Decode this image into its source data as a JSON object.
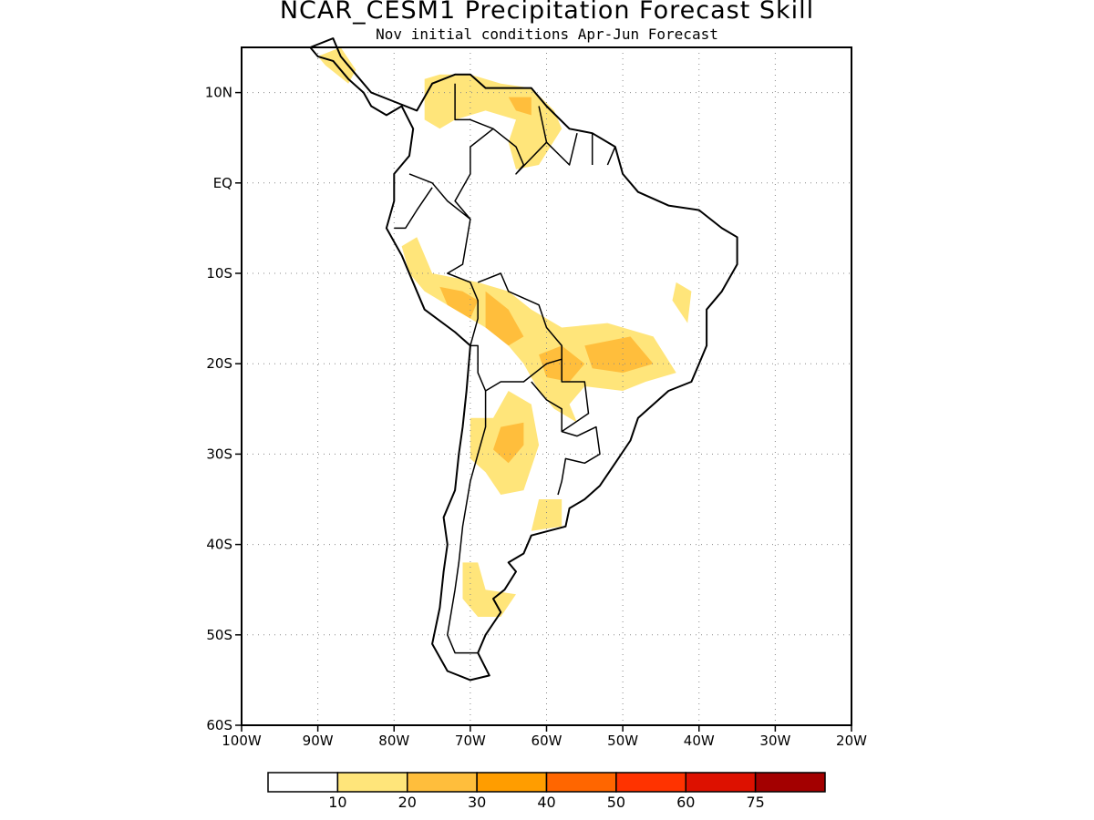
{
  "title": "NCAR_CESM1 Precipitation Forecast Skill",
  "subtitle": "Nov initial conditions  Apr-Jun Forecast",
  "map": {
    "region": "South America",
    "lon_range": [
      -100,
      -20
    ],
    "lat_range": [
      -60,
      15
    ],
    "grid": "dotted",
    "lat_ticks": [
      {
        "value": 10,
        "label": "10N"
      },
      {
        "value": 0,
        "label": "EQ"
      },
      {
        "value": -10,
        "label": "10S"
      },
      {
        "value": -20,
        "label": "20S"
      },
      {
        "value": -30,
        "label": "30S"
      },
      {
        "value": -40,
        "label": "40S"
      },
      {
        "value": -50,
        "label": "50S"
      },
      {
        "value": -60,
        "label": "60S"
      }
    ],
    "lon_ticks": [
      {
        "value": -100,
        "label": "100W"
      },
      {
        "value": -90,
        "label": "90W"
      },
      {
        "value": -80,
        "label": "80W"
      },
      {
        "value": -70,
        "label": "70W"
      },
      {
        "value": -60,
        "label": "60W"
      },
      {
        "value": -50,
        "label": "50W"
      },
      {
        "value": -40,
        "label": "40W"
      },
      {
        "value": -30,
        "label": "30W"
      },
      {
        "value": -20,
        "label": "20W"
      }
    ],
    "skill_regions": [
      {
        "level": 1,
        "name": "central-america",
        "points": [
          [
            -90,
            14
          ],
          [
            -87,
            15
          ],
          [
            -85,
            12.5
          ],
          [
            -86,
            11
          ],
          [
            -89,
            13
          ]
        ]
      },
      {
        "level": 1,
        "name": "colombia-venezuela",
        "points": [
          [
            -76,
            11.5
          ],
          [
            -74,
            12
          ],
          [
            -70,
            12
          ],
          [
            -66,
            11
          ],
          [
            -62,
            10.5
          ],
          [
            -59,
            8
          ],
          [
            -58,
            6
          ],
          [
            -61,
            2
          ],
          [
            -64,
            1.5
          ],
          [
            -65,
            4.5
          ],
          [
            -64,
            7
          ],
          [
            -68,
            8
          ],
          [
            -72,
            7
          ],
          [
            -74,
            6
          ],
          [
            -76,
            7
          ]
        ]
      },
      {
        "level": 2,
        "name": "venezuela-core",
        "points": [
          [
            -65,
            9.5
          ],
          [
            -62,
            9.5
          ],
          [
            -62,
            7.5
          ],
          [
            -64,
            8
          ]
        ]
      },
      {
        "level": 1,
        "name": "peru-bolivia-brazil",
        "points": [
          [
            -79,
            -7
          ],
          [
            -77,
            -6
          ],
          [
            -75,
            -10
          ],
          [
            -69,
            -11
          ],
          [
            -65,
            -12
          ],
          [
            -62,
            -14
          ],
          [
            -58,
            -16
          ],
          [
            -52,
            -15.5
          ],
          [
            -46,
            -17
          ],
          [
            -43,
            -21
          ],
          [
            -47,
            -22
          ],
          [
            -50,
            -23
          ],
          [
            -55,
            -22.5
          ],
          [
            -57,
            -24.5
          ],
          [
            -56,
            -26.5
          ],
          [
            -59,
            -25
          ],
          [
            -61,
            -23
          ],
          [
            -63,
            -20
          ],
          [
            -66,
            -17
          ],
          [
            -68,
            -16
          ],
          [
            -72,
            -14
          ],
          [
            -76,
            -12
          ],
          [
            -78,
            -10
          ]
        ]
      },
      {
        "level": 2,
        "name": "peru-core",
        "points": [
          [
            -74,
            -11.5
          ],
          [
            -71,
            -12
          ],
          [
            -69,
            -13
          ],
          [
            -70,
            -15
          ],
          [
            -73,
            -13.5
          ]
        ]
      },
      {
        "level": 2,
        "name": "bolivia-core",
        "points": [
          [
            -68,
            -12
          ],
          [
            -65,
            -14
          ],
          [
            -63,
            -17
          ],
          [
            -65,
            -18
          ],
          [
            -68,
            -16
          ]
        ]
      },
      {
        "level": 2,
        "name": "paraguay-core",
        "points": [
          [
            -61,
            -19
          ],
          [
            -58,
            -18
          ],
          [
            -55,
            -20
          ],
          [
            -57,
            -22
          ],
          [
            -60,
            -21.5
          ]
        ]
      },
      {
        "level": 2,
        "name": "brazil-core",
        "points": [
          [
            -55,
            -18
          ],
          [
            -49,
            -17
          ],
          [
            -46,
            -20
          ],
          [
            -50,
            -21
          ],
          [
            -54,
            -20.5
          ]
        ]
      },
      {
        "level": 1,
        "name": "eastern-brazil",
        "points": [
          [
            -43,
            -11
          ],
          [
            -41,
            -12
          ],
          [
            -41.5,
            -15.5
          ],
          [
            -43.5,
            -13
          ]
        ]
      },
      {
        "level": 1,
        "name": "argentina-north",
        "points": [
          [
            -67,
            -26
          ],
          [
            -65,
            -23
          ],
          [
            -62,
            -24.5
          ],
          [
            -61,
            -29
          ],
          [
            -63,
            -34
          ],
          [
            -66,
            -34.5
          ],
          [
            -68,
            -32
          ],
          [
            -70,
            -30.5
          ],
          [
            -70,
            -26
          ]
        ]
      },
      {
        "level": 2,
        "name": "argentina-core",
        "points": [
          [
            -66,
            -27
          ],
          [
            -63,
            -26.5
          ],
          [
            -63,
            -29
          ],
          [
            -65,
            -31
          ],
          [
            -67,
            -29.5
          ]
        ]
      },
      {
        "level": 1,
        "name": "buenos-aires",
        "points": [
          [
            -61,
            -35
          ],
          [
            -58,
            -35
          ],
          [
            -58,
            -38
          ],
          [
            -62,
            -38.5
          ]
        ]
      },
      {
        "level": 1,
        "name": "patagonia",
        "points": [
          [
            -71,
            -42
          ],
          [
            -69,
            -42
          ],
          [
            -68,
            -45
          ],
          [
            -64,
            -45.5
          ],
          [
            -66,
            -48
          ],
          [
            -69,
            -48
          ],
          [
            -71,
            -46
          ]
        ]
      }
    ],
    "land_outline": [
      [
        -91,
        15
      ],
      [
        -88,
        16
      ],
      [
        -87,
        14
      ],
      [
        -85,
        12
      ],
      [
        -83,
        10
      ],
      [
        -80,
        9
      ],
      [
        -77,
        8
      ],
      [
        -75,
        11
      ],
      [
        -72,
        12
      ],
      [
        -70,
        12
      ],
      [
        -68,
        10.5
      ],
      [
        -64,
        10.5
      ],
      [
        -62,
        10.5
      ],
      [
        -60,
        8.5
      ],
      [
        -57,
        6
      ],
      [
        -54,
        5.5
      ],
      [
        -51,
        4
      ],
      [
        -50,
        1
      ],
      [
        -48,
        -1
      ],
      [
        -44,
        -2.5
      ],
      [
        -40,
        -3
      ],
      [
        -37,
        -5
      ],
      [
        -35,
        -6
      ],
      [
        -35,
        -9
      ],
      [
        -37,
        -12
      ],
      [
        -39,
        -14
      ],
      [
        -39,
        -18
      ],
      [
        -40,
        -20
      ],
      [
        -41,
        -22
      ],
      [
        -44,
        -23
      ],
      [
        -48,
        -26
      ],
      [
        -49,
        -28.5
      ],
      [
        -51,
        -31
      ],
      [
        -53,
        -33.5
      ],
      [
        -55,
        -35
      ],
      [
        -57,
        -36
      ],
      [
        -57.5,
        -38
      ],
      [
        -62,
        -39
      ],
      [
        -63,
        -41
      ],
      [
        -65,
        -42
      ],
      [
        -64,
        -43
      ],
      [
        -65.5,
        -45
      ],
      [
        -67,
        -46
      ],
      [
        -66,
        -47.5
      ],
      [
        -68,
        -50
      ],
      [
        -69,
        -52
      ],
      [
        -67.5,
        -54.5
      ],
      [
        -70,
        -55
      ],
      [
        -73,
        -54
      ],
      [
        -75,
        -51
      ],
      [
        -74,
        -47
      ],
      [
        -73.5,
        -43
      ],
      [
        -73,
        -40
      ],
      [
        -73.5,
        -37
      ],
      [
        -72,
        -34
      ],
      [
        -71.5,
        -30
      ],
      [
        -71,
        -27
      ],
      [
        -70.5,
        -23
      ],
      [
        -70,
        -18
      ],
      [
        -72,
        -16.5
      ],
      [
        -76,
        -14
      ],
      [
        -77,
        -12
      ],
      [
        -79,
        -8
      ],
      [
        -81,
        -5
      ],
      [
        -80,
        -2
      ],
      [
        -80,
        1
      ],
      [
        -78,
        3
      ],
      [
        -77.5,
        6
      ],
      [
        -79,
        8.5
      ],
      [
        -81,
        7.5
      ],
      [
        -83,
        8.5
      ],
      [
        -84,
        10
      ],
      [
        -86,
        11.5
      ],
      [
        -88,
        13.5
      ],
      [
        -90,
        14
      ]
    ],
    "borders": [
      [
        [
          -78,
          1
        ],
        [
          -75,
          0
        ],
        [
          -73,
          -2
        ],
        [
          -70,
          -4
        ],
        [
          -72,
          -2
        ],
        [
          -70,
          1
        ],
        [
          -70,
          4
        ],
        [
          -67,
          6
        ],
        [
          -70,
          7
        ],
        [
          -72,
          7
        ],
        [
          -72,
          11
        ]
      ],
      [
        [
          -75,
          -0.5
        ],
        [
          -77,
          -3
        ],
        [
          -78.5,
          -5
        ],
        [
          -80,
          -5
        ]
      ],
      [
        [
          -70,
          -4
        ],
        [
          -71,
          -9
        ],
        [
          -73,
          -10
        ],
        [
          -70,
          -11
        ],
        [
          -69,
          -13
        ],
        [
          -69,
          -15
        ],
        [
          -70,
          -18
        ]
      ],
      [
        [
          -69,
          -11
        ],
        [
          -66,
          -10
        ],
        [
          -65,
          -12
        ],
        [
          -61,
          -13.5
        ],
        [
          -60,
          -16
        ],
        [
          -58,
          -18
        ],
        [
          -58,
          -19.5
        ],
        [
          -60,
          -20
        ],
        [
          -63,
          -22
        ],
        [
          -66,
          -22
        ],
        [
          -68,
          -23
        ],
        [
          -69,
          -21
        ],
        [
          -69,
          -18
        ],
        [
          -70,
          -18
        ]
      ],
      [
        [
          -67,
          6
        ],
        [
          -64,
          4
        ],
        [
          -63,
          2
        ],
        [
          -64,
          1
        ],
        [
          -60,
          4.5
        ],
        [
          -61,
          8.5
        ]
      ],
      [
        [
          -60,
          4.5
        ],
        [
          -57,
          2
        ],
        [
          -56,
          5.5
        ]
      ],
      [
        [
          -54,
          2
        ],
        [
          -54,
          5.5
        ]
      ],
      [
        [
          -52,
          2
        ],
        [
          -51,
          4
        ]
      ],
      [
        [
          -58,
          -19.5
        ],
        [
          -58,
          -22
        ],
        [
          -55,
          -22
        ],
        [
          -54.5,
          -25.5
        ],
        [
          -58,
          -27.5
        ],
        [
          -58,
          -25
        ],
        [
          -60,
          -24
        ],
        [
          -62,
          -22
        ]
      ],
      [
        [
          -68,
          -23
        ],
        [
          -68,
          -27
        ],
        [
          -69,
          -30
        ],
        [
          -70,
          -33
        ],
        [
          -71,
          -38
        ],
        [
          -71.5,
          -42
        ],
        [
          -72,
          -45
        ],
        [
          -73,
          -50
        ],
        [
          -72,
          -52
        ],
        [
          -69,
          -52
        ]
      ],
      [
        [
          -58,
          -27.5
        ],
        [
          -56,
          -28
        ],
        [
          -53.5,
          -27
        ],
        [
          -53,
          -30
        ],
        [
          -55,
          -31
        ],
        [
          -57.5,
          -30.5
        ],
        [
          -58,
          -33
        ],
        [
          -58.5,
          -34.5
        ]
      ]
    ]
  },
  "colorbar": {
    "colors": [
      "#ffffff",
      "#ffe57a",
      "#ffbe3c",
      "#ff9d00",
      "#ff6600",
      "#ff3300",
      "#dd1100",
      "#a30000"
    ],
    "labels": [
      "10",
      "20",
      "30",
      "40",
      "50",
      "60",
      "75"
    ]
  }
}
